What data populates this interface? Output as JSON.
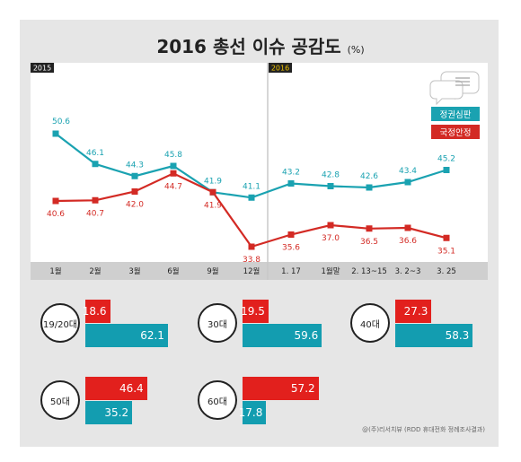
{
  "title": "2016 총선 이슈 공감도",
  "title_unit": "(%)",
  "year_labels": {
    "left": "2015",
    "right": "2016"
  },
  "colors": {
    "teal": "#1aa2b1",
    "red": "#d32a24",
    "bar_red": "#e2201d",
    "bar_teal": "#139db0"
  },
  "chart_data": [
    {
      "type": "line",
      "categories": [
        "1월",
        "2월",
        "3월",
        "6월",
        "9월",
        "12월",
        "1. 17",
        "1월말",
        "2. 13~15",
        "3. 2~3",
        "3. 25"
      ],
      "series": [
        {
          "name": "정권심판",
          "values": [
            50.6,
            46.1,
            44.3,
            45.8,
            41.9,
            41.1,
            43.2,
            42.8,
            42.6,
            43.4,
            45.2
          ]
        },
        {
          "name": "국정안정",
          "values": [
            40.6,
            40.7,
            42.0,
            44.7,
            41.9,
            33.8,
            35.6,
            37.0,
            36.5,
            36.6,
            35.1
          ]
        }
      ],
      "legend_position": "right"
    },
    {
      "type": "bar",
      "categories": [
        "19/20대",
        "30대",
        "40대",
        "50대",
        "60대"
      ],
      "series": [
        {
          "name": "국정안정",
          "values": [
            18.6,
            19.5,
            27.3,
            46.4,
            57.2
          ]
        },
        {
          "name": "정권심판",
          "values": [
            62.1,
            59.6,
            58.3,
            35.2,
            17.8
          ]
        }
      ]
    }
  ],
  "footnote": "@(주)리서치뷰 (RDD 휴대전화 정례조사결과)"
}
